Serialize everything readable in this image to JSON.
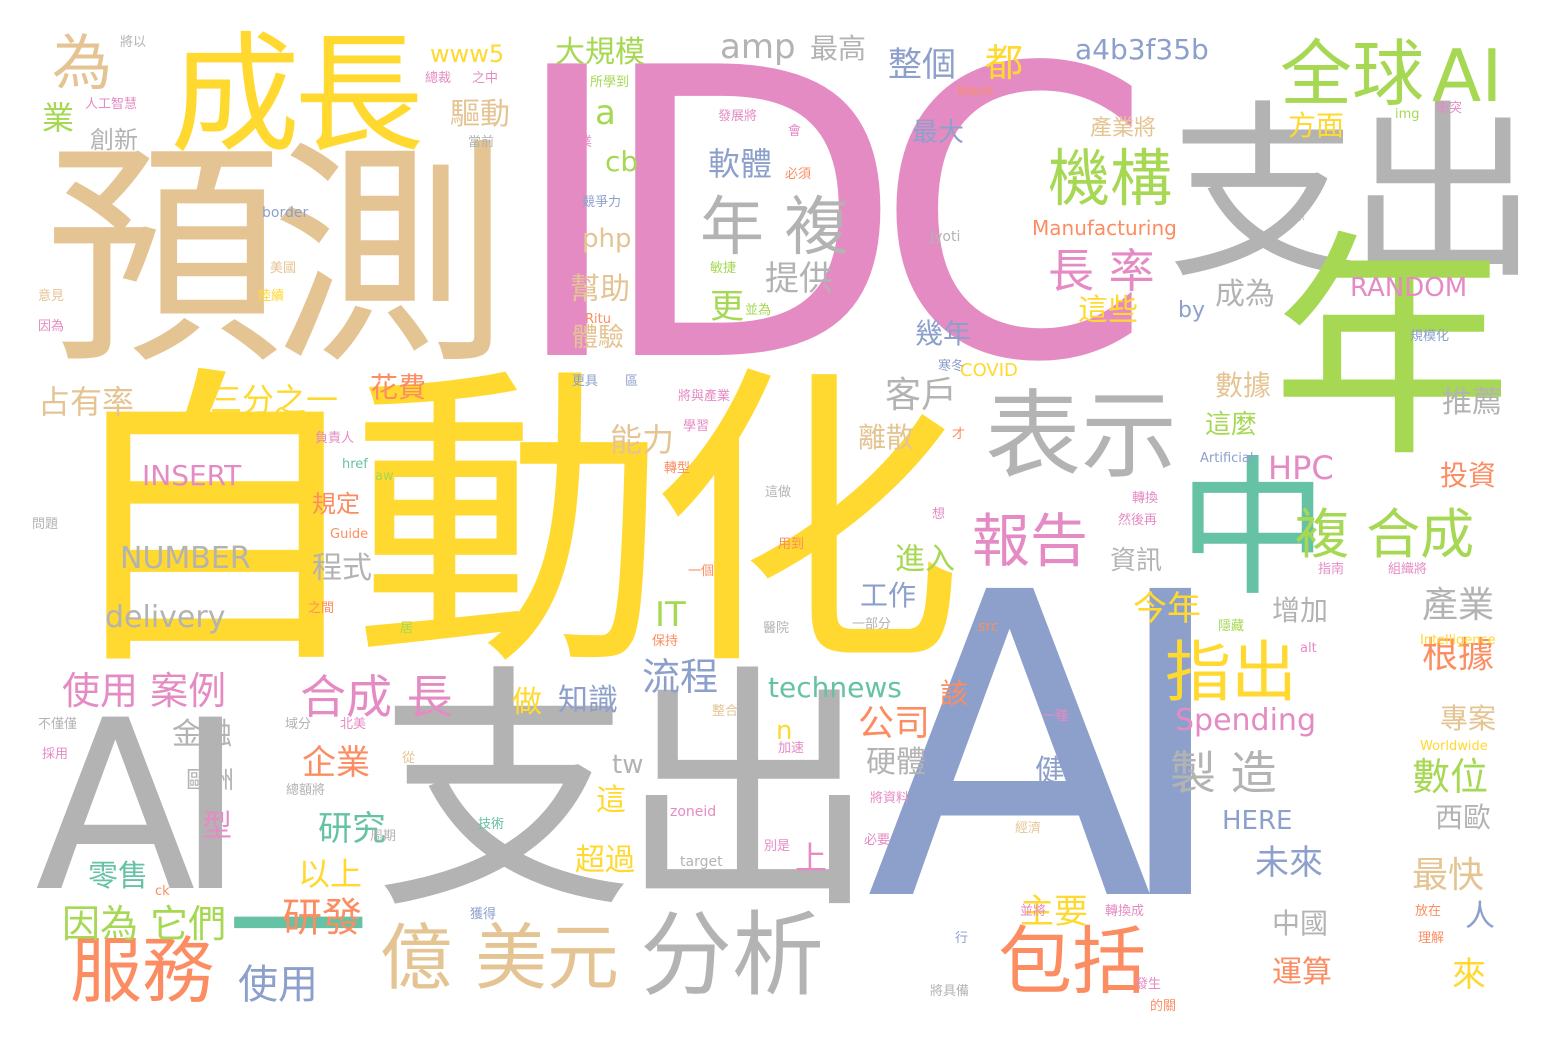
{
  "palette": {
    "pink": "#e58bc4",
    "yellow": "#ffd92f",
    "tan": "#e5c494",
    "gray": "#b3b3b3",
    "green": "#a6d854",
    "teal": "#66c2a5",
    "blue": "#8da0cb",
    "orange": "#fc8d62"
  },
  "words": [
    {
      "text": "IDC",
      "color": "pink"
    },
    {
      "text": "自動化",
      "color": "yellow"
    },
    {
      "text": "AI",
      "color": "blue"
    },
    {
      "text": "預測",
      "color": "tan"
    },
    {
      "text": "支出",
      "color": "gray"
    },
    {
      "text": "成長",
      "color": "yellow"
    },
    {
      "text": "支出",
      "color": "gray"
    },
    {
      "text": "AI",
      "color": "gray"
    },
    {
      "text": "年",
      "color": "green"
    },
    {
      "text": "中",
      "color": "teal"
    },
    {
      "text": "一",
      "color": "teal"
    },
    {
      "text": "表示",
      "color": "gray"
    },
    {
      "text": "全球",
      "color": "green"
    },
    {
      "text": "AI",
      "color": "green"
    },
    {
      "text": "機構",
      "color": "green"
    },
    {
      "text": "年 複",
      "color": "gray"
    },
    {
      "text": "為",
      "color": "tan"
    },
    {
      "text": "長 率",
      "color": "pink"
    },
    {
      "text": "報告",
      "color": "pink"
    },
    {
      "text": "指出",
      "color": "yellow"
    },
    {
      "text": "複 合成",
      "color": "green"
    },
    {
      "text": "分析",
      "color": "gray"
    },
    {
      "text": "億",
      "color": "tan"
    },
    {
      "text": "美元",
      "color": "tan"
    },
    {
      "text": "服務",
      "color": "orange"
    },
    {
      "text": "包括",
      "color": "orange"
    },
    {
      "text": "合成 長",
      "color": "pink"
    },
    {
      "text": "製 造",
      "color": "gray"
    },
    {
      "text": "使用 案例",
      "color": "pink"
    },
    {
      "text": "因為 它們",
      "color": "green"
    },
    {
      "text": "研發",
      "color": "orange"
    },
    {
      "text": "使用",
      "color": "blue"
    },
    {
      "text": "amp",
      "color": "gray"
    },
    {
      "text": "最高",
      "color": "gray"
    },
    {
      "text": "整個",
      "color": "blue"
    },
    {
      "text": "都",
      "color": "yellow"
    },
    {
      "text": "a4b3f35b",
      "color": "blue"
    },
    {
      "text": "www5",
      "color": "yellow"
    },
    {
      "text": "大規模",
      "color": "green"
    },
    {
      "text": "業",
      "color": "green"
    },
    {
      "text": "創新",
      "color": "gray"
    },
    {
      "text": "驅動",
      "color": "tan"
    },
    {
      "text": "a",
      "color": "green"
    },
    {
      "text": "軟體",
      "color": "blue"
    },
    {
      "text": "最大",
      "color": "blue"
    },
    {
      "text": "cb",
      "color": "green"
    },
    {
      "text": "php",
      "color": "tan"
    },
    {
      "text": "提供",
      "color": "gray"
    },
    {
      "text": "幫助",
      "color": "tan"
    },
    {
      "text": "體驗",
      "color": "tan"
    },
    {
      "text": "更",
      "color": "green"
    },
    {
      "text": "幾年",
      "color": "blue"
    },
    {
      "text": "成為",
      "color": "gray"
    },
    {
      "text": "這些",
      "color": "yellow"
    },
    {
      "text": "方面",
      "color": "yellow"
    },
    {
      "text": "產業將",
      "color": "tan"
    },
    {
      "text": "Manufacturing",
      "color": "orange"
    },
    {
      "text": "RANDOM",
      "color": "pink"
    },
    {
      "text": "by",
      "color": "blue"
    },
    {
      "text": "占有率",
      "color": "tan"
    },
    {
      "text": "三分之一",
      "color": "yellow"
    },
    {
      "text": "花費",
      "color": "orange"
    },
    {
      "text": "客戶",
      "color": "gray"
    },
    {
      "text": "能力",
      "color": "tan"
    },
    {
      "text": "離散",
      "color": "tan"
    },
    {
      "text": "數據",
      "color": "tan"
    },
    {
      "text": "這麼",
      "color": "green"
    },
    {
      "text": "推薦",
      "color": "gray"
    },
    {
      "text": "HPC",
      "color": "pink"
    },
    {
      "text": "投資",
      "color": "orange"
    },
    {
      "text": "INSERT",
      "color": "pink"
    },
    {
      "text": "NUMBER",
      "color": "gray"
    },
    {
      "text": "delivery",
      "color": "gray"
    },
    {
      "text": "規定",
      "color": "orange"
    },
    {
      "text": "程式",
      "color": "gray"
    },
    {
      "text": "進入",
      "color": "green"
    },
    {
      "text": "工作",
      "color": "blue"
    },
    {
      "text": "資訊",
      "color": "gray"
    },
    {
      "text": "今年",
      "color": "yellow"
    },
    {
      "text": "增加",
      "color": "gray"
    },
    {
      "text": "產業",
      "color": "gray"
    },
    {
      "text": "IT",
      "color": "green"
    },
    {
      "text": "流程",
      "color": "blue"
    },
    {
      "text": "technews",
      "color": "teal"
    },
    {
      "text": "知識",
      "color": "blue"
    },
    {
      "text": "做",
      "color": "yellow"
    },
    {
      "text": "公司",
      "color": "orange"
    },
    {
      "text": "Spending",
      "color": "pink"
    },
    {
      "text": "根據",
      "color": "orange"
    },
    {
      "text": "專案",
      "color": "tan"
    },
    {
      "text": "n",
      "color": "yellow"
    },
    {
      "text": "該",
      "color": "orange"
    },
    {
      "text": "企業",
      "color": "orange"
    },
    {
      "text": "金融",
      "color": "gray"
    },
    {
      "text": "歐洲",
      "color": "gray"
    },
    {
      "text": "tw",
      "color": "gray"
    },
    {
      "text": "硬體",
      "color": "gray"
    },
    {
      "text": "健康",
      "color": "blue"
    },
    {
      "text": "數位",
      "color": "green"
    },
    {
      "text": "西歐",
      "color": "gray"
    },
    {
      "text": "研究",
      "color": "teal"
    },
    {
      "text": "這",
      "color": "yellow"
    },
    {
      "text": "www",
      "color": "blue"
    },
    {
      "text": "HERE",
      "color": "blue"
    },
    {
      "text": "型",
      "color": "pink"
    },
    {
      "text": "以上",
      "color": "yellow"
    },
    {
      "text": "上",
      "color": "pink"
    },
    {
      "text": "超過",
      "color": "yellow"
    },
    {
      "text": "未來",
      "color": "blue"
    },
    {
      "text": "最快",
      "color": "tan"
    },
    {
      "text": "零售",
      "color": "teal"
    },
    {
      "text": "主要",
      "color": "yellow"
    },
    {
      "text": "中國",
      "color": "gray"
    },
    {
      "text": "人",
      "color": "blue"
    },
    {
      "text": "運算",
      "color": "orange"
    },
    {
      "text": "來",
      "color": "yellow"
    },
    {
      "text": "COVID",
      "color": "yellow"
    },
    {
      "text": "Jyoti",
      "color": "gray"
    },
    {
      "text": "Artificial",
      "color": "blue"
    },
    {
      "text": "Intelligence",
      "color": "yellow"
    },
    {
      "text": "Worldwide",
      "color": "yellow"
    },
    {
      "text": "border",
      "color": "blue"
    },
    {
      "text": "href",
      "color": "teal"
    },
    {
      "text": "aw",
      "color": "green"
    },
    {
      "text": "Guide",
      "color": "orange"
    },
    {
      "text": "zoneid",
      "color": "pink"
    },
    {
      "text": "target",
      "color": "gray"
    },
    {
      "text": "src",
      "color": "orange"
    },
    {
      "text": "alt",
      "color": "pink"
    },
    {
      "text": "img",
      "color": "green"
    },
    {
      "text": "blank",
      "color": "orange"
    },
    {
      "text": "ck",
      "color": "orange"
    },
    {
      "text": "Ritu",
      "color": "orange"
    },
    {
      "text": "將以",
      "color": "gray"
    },
    {
      "text": "總裁",
      "color": "pink"
    },
    {
      "text": "之中",
      "color": "pink"
    },
    {
      "text": "人工智慧",
      "color": "pink"
    },
    {
      "text": "所學到",
      "color": "green"
    },
    {
      "text": "當前",
      "color": "gray"
    },
    {
      "text": "發展將",
      "color": "pink"
    },
    {
      "text": "商業",
      "color": "pink"
    },
    {
      "text": "會",
      "color": "pink"
    },
    {
      "text": "衝突",
      "color": "pink"
    },
    {
      "text": "必須",
      "color": "orange"
    },
    {
      "text": "競爭力",
      "color": "blue"
    },
    {
      "text": "係",
      "color": "gray"
    },
    {
      "text": "美國",
      "color": "tan"
    },
    {
      "text": "敏捷",
      "color": "green"
    },
    {
      "text": "意見",
      "color": "tan"
    },
    {
      "text": "陸續",
      "color": "yellow"
    },
    {
      "text": "信",
      "color": "pink"
    },
    {
      "text": "因為",
      "color": "pink"
    },
    {
      "text": "並為",
      "color": "green"
    },
    {
      "text": "規模化",
      "color": "blue"
    },
    {
      "text": "更具",
      "color": "blue"
    },
    {
      "text": "區",
      "color": "blue"
    },
    {
      "text": "寒冬",
      "color": "blue"
    },
    {
      "text": "將與產業",
      "color": "pink"
    },
    {
      "text": "負責人",
      "color": "pink"
    },
    {
      "text": "學習",
      "color": "pink"
    },
    {
      "text": "轉型",
      "color": "orange"
    },
    {
      "text": "才",
      "color": "orange"
    },
    {
      "text": "這做",
      "color": "gray"
    },
    {
      "text": "轉換",
      "color": "pink"
    },
    {
      "text": "然後再",
      "color": "pink"
    },
    {
      "text": "想",
      "color": "pink"
    },
    {
      "text": "問題",
      "color": "gray"
    },
    {
      "text": "用到",
      "color": "orange"
    },
    {
      "text": "一個",
      "color": "orange"
    },
    {
      "text": "指南",
      "color": "pink"
    },
    {
      "text": "組織將",
      "color": "pink"
    },
    {
      "text": "之間",
      "color": "orange"
    },
    {
      "text": "保持",
      "color": "orange"
    },
    {
      "text": "居",
      "color": "green"
    },
    {
      "text": "醫院",
      "color": "gray"
    },
    {
      "text": "一部分",
      "color": "gray"
    },
    {
      "text": "隱藏",
      "color": "green"
    },
    {
      "text": "不僅僅",
      "color": "gray"
    },
    {
      "text": "域分",
      "color": "gray"
    },
    {
      "text": "北美",
      "color": "pink"
    },
    {
      "text": "整合",
      "color": "tan"
    },
    {
      "text": "一種",
      "color": "pink"
    },
    {
      "text": "採用",
      "color": "pink"
    },
    {
      "text": "從",
      "color": "tan"
    },
    {
      "text": "加速",
      "color": "pink"
    },
    {
      "text": "總額將",
      "color": "gray"
    },
    {
      "text": "將資料",
      "color": "pink"
    },
    {
      "text": "技術",
      "color": "teal"
    },
    {
      "text": "經濟",
      "color": "tan"
    },
    {
      "text": "副",
      "color": "blue"
    },
    {
      "text": "別是",
      "color": "pink"
    },
    {
      "text": "必要",
      "color": "pink"
    },
    {
      "text": "周期",
      "color": "gray"
    },
    {
      "text": "並將",
      "color": "pink"
    },
    {
      "text": "轉換成",
      "color": "pink"
    },
    {
      "text": "放在",
      "color": "orange"
    },
    {
      "text": "獲得",
      "color": "blue"
    },
    {
      "text": "行",
      "color": "blue"
    },
    {
      "text": "理解",
      "color": "orange"
    },
    {
      "text": "將具備",
      "color": "gray"
    },
    {
      "text": "發生",
      "color": "pink"
    },
    {
      "text": "的關",
      "color": "orange"
    }
  ]
}
